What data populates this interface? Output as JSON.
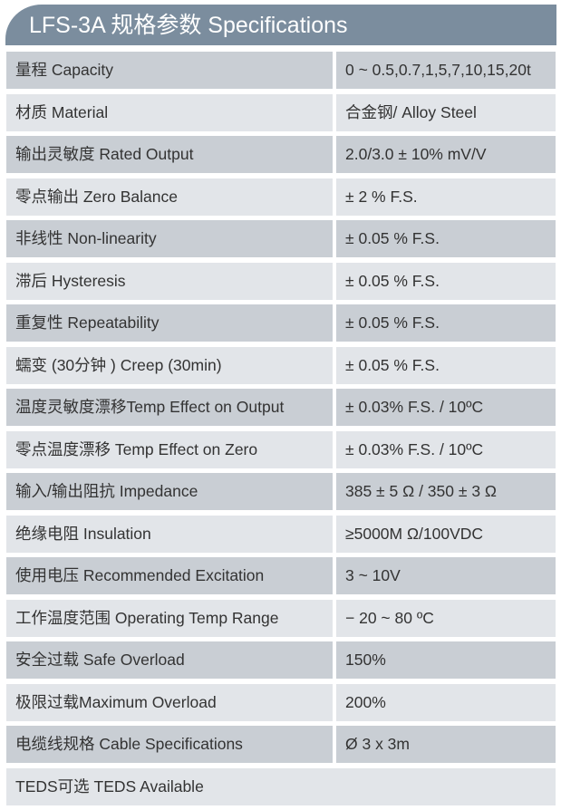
{
  "title": "LFS-3A 规格参数 Specifications",
  "rows": [
    {
      "label": "量程 Capacity",
      "value": "0 ~ 0.5,0.7,1,5,7,10,15,20t"
    },
    {
      "label": "材质 Material",
      "value": "合金钢/ Alloy Steel"
    },
    {
      "label": "输出灵敏度 Rated Output",
      "value": "2.0/3.0 ± 10% mV/V"
    },
    {
      "label": "零点输出  Zero Balance",
      "value": "± 2 % F.S."
    },
    {
      "label": "非线性 Non-linearity",
      "value": "± 0.05 % F.S."
    },
    {
      "label": "滞后 Hysteresis",
      "value": "± 0.05 % F.S."
    },
    {
      "label": "重复性 Repeatability",
      "value": "± 0.05 % F.S."
    },
    {
      "label": "蠕变 (30分钟 ) Creep (30min)",
      "value": "± 0.05 % F.S."
    },
    {
      "label": "温度灵敏度漂移Temp Effect on Output",
      "value": "± 0.03% F.S. / 10ºC"
    },
    {
      "label": "零点温度漂移 Temp Effect on Zero",
      "value": "± 0.03% F.S. / 10ºC"
    },
    {
      "label": "输入/输出阻抗 Impedance",
      "value": "385 ± 5 Ω  / 350 ± 3 Ω"
    },
    {
      "label": "绝缘电阻  Insulation",
      "value": "≥5000M Ω/100VDC"
    },
    {
      "label": "使用电压 Recommended Excitation",
      "value": "3 ~ 10V"
    },
    {
      "label": "工作温度范围 Operating Temp  Range",
      "value": "− 20 ~ 80 ºC"
    },
    {
      "label": "安全过载 Safe Overload",
      "value": "150%"
    },
    {
      "label": "极限过载Maximum Overload",
      "value": "200%"
    },
    {
      "label": "电缆线规格 Cable Specifications",
      "value": "Ø 3 x 3m"
    },
    {
      "label": "TEDS可选 TEDS Available"
    }
  ]
}
